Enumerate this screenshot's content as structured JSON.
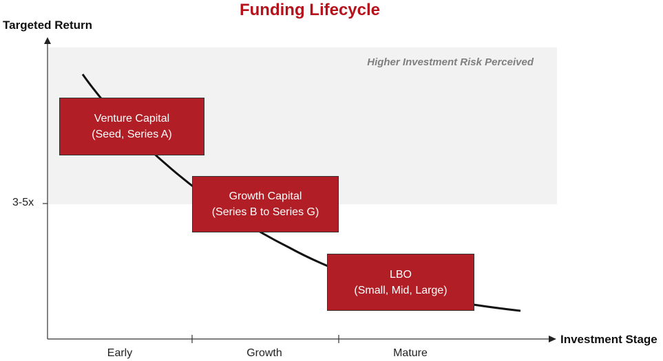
{
  "title": "Funding Lifecycle",
  "y_axis": {
    "title": "Targeted Return",
    "tick_label": "3-5x"
  },
  "x_axis": {
    "title": "Investment Stage",
    "stages": [
      "Early",
      "Growth",
      "Mature"
    ]
  },
  "risk_band": {
    "label": "Higher Investment Risk Perceived",
    "color": "#f2f2f2"
  },
  "boxes": [
    {
      "line1": "Venture Capital",
      "line2": "(Seed, Series A)"
    },
    {
      "line1": "Growth Capital",
      "line2": "(Series B to Series G)"
    },
    {
      "line1": "LBO",
      "line2": "(Small, Mid, Large)"
    }
  ],
  "colors": {
    "title": "#b5121b",
    "box_fill": "#b21e25",
    "curve": "#111111"
  }
}
